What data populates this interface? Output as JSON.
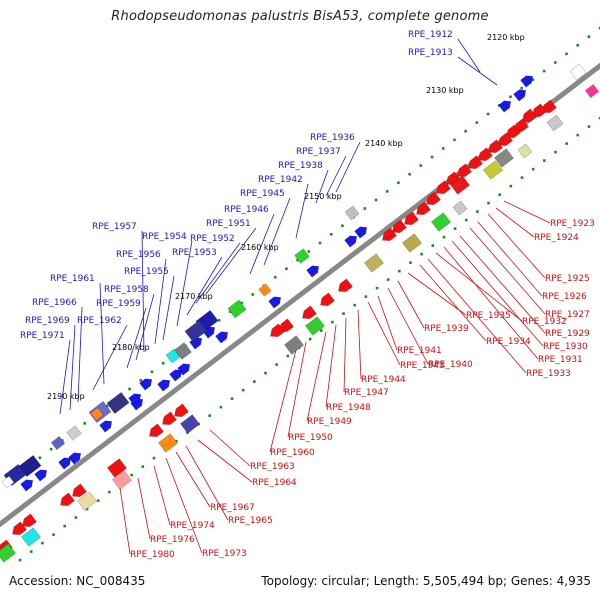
{
  "title": "Rhodopseudomonas palustris BisA53, complete genome",
  "accession": "Accession: NC_008435",
  "topology": "Topology: circular; Length: 5,505,494 bp; Genes: 4,935",
  "colors": {
    "backbone": "#7f7f7f",
    "plus_label": "#1a1acc",
    "minus_label": "#cc1111",
    "tick_dots": "#1f8a1f"
  },
  "ticks": [
    {
      "label": "2120 kbp"
    },
    {
      "label": "2130 kbp"
    },
    {
      "label": "2140 kbp"
    },
    {
      "label": "2150 kbp"
    },
    {
      "label": "2160 kbp"
    },
    {
      "label": "2170 kbp"
    },
    {
      "label": "2180 kbp"
    },
    {
      "label": "2190 kbp"
    }
  ],
  "plus_labels": [
    "RPE_1912",
    "RPE_1913",
    "RPE_1936",
    "RPE_1937",
    "RPE_1938",
    "RPE_1942",
    "RPE_1945",
    "RPE_1946",
    "RPE_1951",
    "RPE_1952",
    "RPE_1953",
    "RPE_1954",
    "RPE_1955",
    "RPE_1956",
    "RPE_1957",
    "RPE_1958",
    "RPE_1959",
    "RPE_1961",
    "RPE_1962",
    "RPE_1966",
    "RPE_1969",
    "RPE_1971"
  ],
  "minus_labels": [
    "RPE_1923",
    "RPE_1924",
    "RPE_1925",
    "RPE_1926",
    "RPE_1927",
    "RPE_1929",
    "RPE_1930",
    "RPE_1931",
    "RPE_1932",
    "RPE_1933",
    "RPE_1934",
    "RPE_1935",
    "RPE_1939",
    "RPE_1940",
    "RPE_1941",
    "RPE_1943",
    "RPE_1944",
    "RPE_1947",
    "RPE_1948",
    "RPE_1949",
    "RPE_1950",
    "RPE_1960",
    "RPE_1963",
    "RPE_1964",
    "RPE_1965",
    "RPE_1967",
    "RPE_1973",
    "RPE_1974",
    "RPE_1976",
    "RPE_1980"
  ]
}
